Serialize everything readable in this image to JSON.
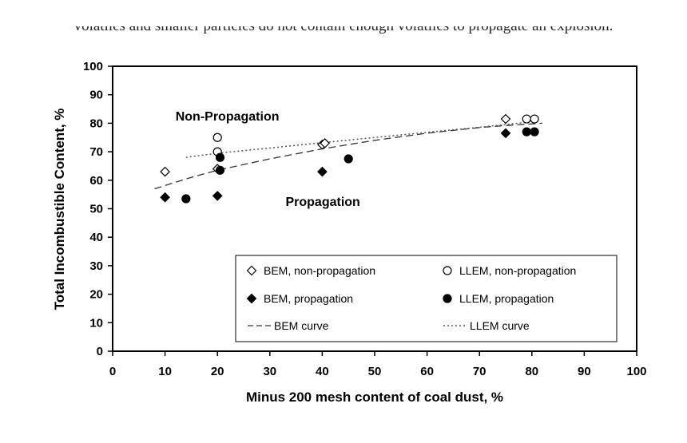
{
  "caption": "volatiles and smaller particles do not contain enough volatiles to propagate an explosion.",
  "chart_data": {
    "type": "scatter",
    "xlabel": "Minus 200 mesh content of coal dust, %",
    "ylabel": "Total Incombustible Content, %",
    "xlim": [
      0,
      100
    ],
    "ylim": [
      0,
      100
    ],
    "xticks": [
      0,
      10,
      20,
      30,
      40,
      50,
      60,
      70,
      80,
      90,
      100
    ],
    "yticks": [
      0,
      10,
      20,
      30,
      40,
      50,
      60,
      70,
      80,
      90,
      100
    ],
    "annotations": [
      {
        "text": "Non-Propagation",
        "x": 12,
        "y": 81
      },
      {
        "text": "Propagation",
        "x": 33,
        "y": 51
      }
    ],
    "series": [
      {
        "name": "BEM, non-propagation",
        "marker": "diamond-open",
        "points": [
          [
            10,
            63
          ],
          [
            20,
            64
          ],
          [
            40,
            72.5
          ],
          [
            40.5,
            73
          ],
          [
            75,
            81.5
          ]
        ]
      },
      {
        "name": "LLEM, non-propagation",
        "marker": "circle-open",
        "points": [
          [
            20,
            75
          ],
          [
            20,
            70
          ],
          [
            79,
            81.5
          ],
          [
            80.5,
            81.5
          ]
        ]
      },
      {
        "name": "BEM, propagation",
        "marker": "diamond-filled",
        "points": [
          [
            10,
            54
          ],
          [
            20,
            54.5
          ],
          [
            40,
            63
          ],
          [
            75,
            76.5
          ]
        ]
      },
      {
        "name": "LLEM, propagation",
        "marker": "circle-filled",
        "points": [
          [
            14,
            53.5
          ],
          [
            20.5,
            68
          ],
          [
            20.5,
            63.5
          ],
          [
            45,
            67.5
          ],
          [
            79,
            77
          ],
          [
            80.5,
            77
          ]
        ]
      },
      {
        "name": "BEM curve",
        "line": "dashed",
        "points": [
          [
            8,
            57
          ],
          [
            15,
            61
          ],
          [
            20,
            63.5
          ],
          [
            30,
            67.5
          ],
          [
            40,
            71
          ],
          [
            50,
            74
          ],
          [
            60,
            76.5
          ],
          [
            70,
            78.5
          ],
          [
            75,
            79.2
          ],
          [
            82,
            80
          ]
        ]
      },
      {
        "name": "LLEM curve",
        "line": "dotted",
        "points": [
          [
            14,
            68
          ],
          [
            20,
            69.5
          ],
          [
            30,
            71.3
          ],
          [
            40,
            73.2
          ],
          [
            50,
            75
          ],
          [
            60,
            76.8
          ],
          [
            70,
            78.6
          ],
          [
            80,
            80.5
          ]
        ]
      }
    ]
  }
}
